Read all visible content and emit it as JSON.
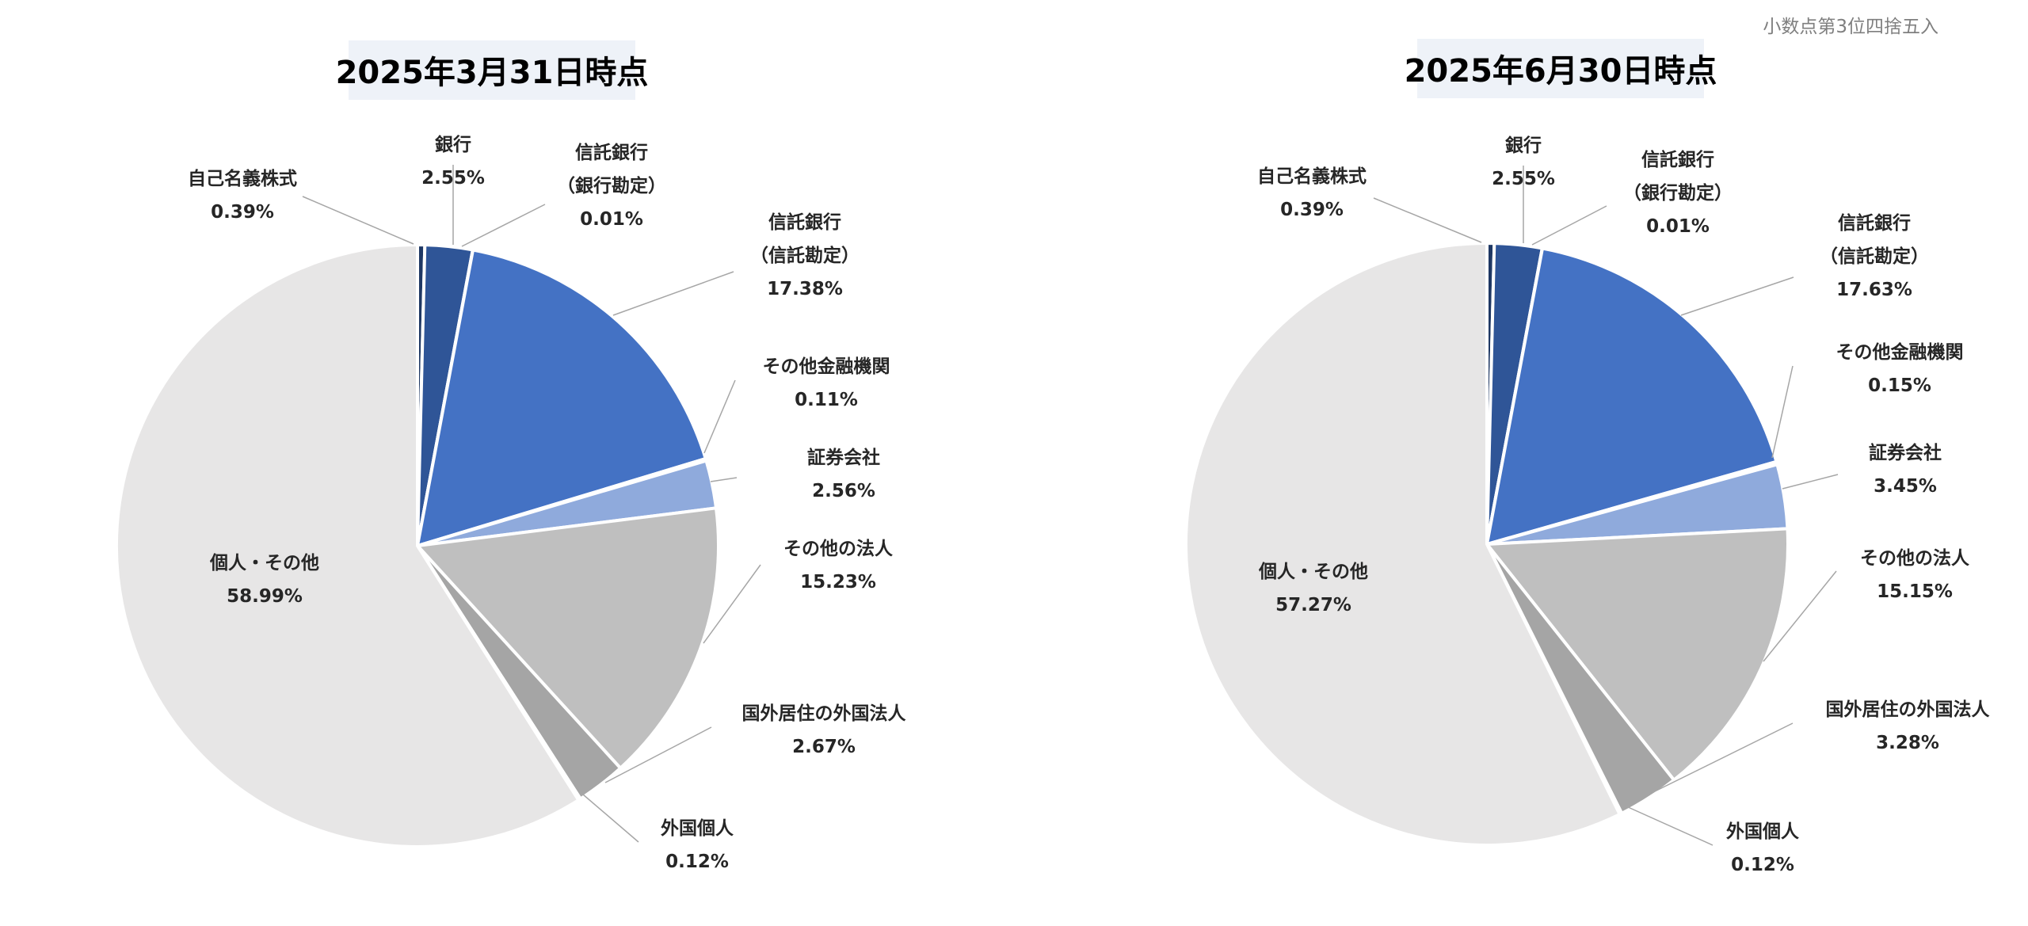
{
  "note": "小数点第3位四捨五入",
  "chart_data": [
    {
      "type": "pie",
      "title": "2025年3月31日時点",
      "slices": [
        {
          "label": [
            "自己名義株式"
          ],
          "value": 0.39,
          "value_label": "0.39%",
          "color": "#1f3864"
        },
        {
          "label": [
            "銀行"
          ],
          "value": 2.55,
          "value_label": "2.55%",
          "color": "#2f5597"
        },
        {
          "label": [
            "信託銀行",
            "（銀行勘定）"
          ],
          "value": 0.01,
          "value_label": "0.01%",
          "color": "#ffffff"
        },
        {
          "label": [
            "信託銀行",
            "（信託勘定）"
          ],
          "value": 17.38,
          "value_label": "17.38%",
          "color": "#4472c4"
        },
        {
          "label": [
            "その他金融機関"
          ],
          "value": 0.11,
          "value_label": "0.11%",
          "color": "#ffffff"
        },
        {
          "label": [
            "証券会社"
          ],
          "value": 2.56,
          "value_label": "2.56%",
          "color": "#8faadc"
        },
        {
          "label": [
            "その他の法人"
          ],
          "value": 15.23,
          "value_label": "15.23%",
          "color": "#bfbfbf"
        },
        {
          "label": [
            "国外居住の外国法人"
          ],
          "value": 2.67,
          "value_label": "2.67%",
          "color": "#a5a5a5"
        },
        {
          "label": [
            "外国個人"
          ],
          "value": 0.12,
          "value_label": "0.12%",
          "color": "#ffffff"
        },
        {
          "label": [
            "個人・その他"
          ],
          "value": 58.99,
          "value_label": "58.99%",
          "color": "#e7e6e6"
        }
      ]
    },
    {
      "type": "pie",
      "title": "2025年6月30日時点",
      "slices": [
        {
          "label": [
            "自己名義株式"
          ],
          "value": 0.39,
          "value_label": "0.39%",
          "color": "#1f3864"
        },
        {
          "label": [
            "銀行"
          ],
          "value": 2.55,
          "value_label": "2.55%",
          "color": "#2f5597"
        },
        {
          "label": [
            "信託銀行",
            "（銀行勘定）"
          ],
          "value": 0.01,
          "value_label": "0.01%",
          "color": "#ffffff"
        },
        {
          "label": [
            "信託銀行",
            "（信託勘定）"
          ],
          "value": 17.63,
          "value_label": "17.63%",
          "color": "#4472c4"
        },
        {
          "label": [
            "その他金融機関"
          ],
          "value": 0.15,
          "value_label": "0.15%",
          "color": "#ffffff"
        },
        {
          "label": [
            "証券会社"
          ],
          "value": 3.45,
          "value_label": "3.45%",
          "color": "#8faadc"
        },
        {
          "label": [
            "その他の法人"
          ],
          "value": 15.15,
          "value_label": "15.15%",
          "color": "#bfbfbf"
        },
        {
          "label": [
            "国外居住の外国法人"
          ],
          "value": 3.28,
          "value_label": "3.28%",
          "color": "#a5a5a5"
        },
        {
          "label": [
            "外国個人"
          ],
          "value": 0.12,
          "value_label": "0.12%",
          "color": "#ffffff"
        },
        {
          "label": [
            "個人・その他"
          ],
          "value": 57.27,
          "value_label": "57.27%",
          "color": "#e7e6e6"
        }
      ]
    }
  ]
}
